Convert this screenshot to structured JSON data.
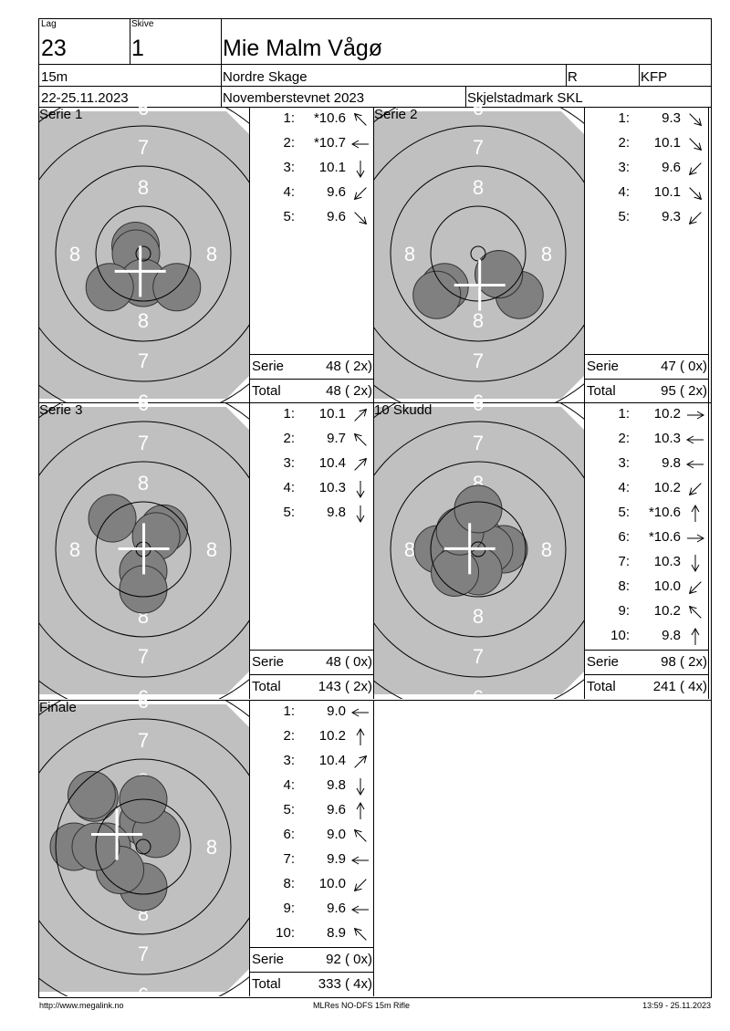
{
  "header": {
    "lag_label": "Lag",
    "lag": "23",
    "skive_label": "Skive",
    "skive": "1",
    "name": "Mie Malm Vågø",
    "distance": "15m",
    "club": "Nordre Skage",
    "class_code": "R",
    "class": "KFP",
    "date": "22-25.11.2023",
    "event": "Novemberstevnet 2023",
    "venue": "Skjelstadmark SKL"
  },
  "target": {
    "ring_labels": [
      "6",
      "7",
      "8"
    ],
    "colors": {
      "target": "#c0c0c0",
      "shot": "#808080",
      "cross": "#ffffff"
    }
  },
  "panels": [
    {
      "title": "Serie 1",
      "shots": [
        {
          "n": "1:",
          "value": "*10.6",
          "score": 10.6,
          "dir": "up-left"
        },
        {
          "n": "2:",
          "value": "*10.7",
          "score": 10.7,
          "dir": "left"
        },
        {
          "n": "3:",
          "value": "10.1",
          "score": 10.1,
          "dir": "down"
        },
        {
          "n": "4:",
          "value": "9.6",
          "score": 9.6,
          "dir": "down-left"
        },
        {
          "n": "5:",
          "value": "9.6",
          "score": 9.6,
          "dir": "down-right"
        }
      ],
      "serie_label": "Serie",
      "serie_value": "48 ( 2x)",
      "total_label": "Total",
      "total_value": "48 ( 2x)"
    },
    {
      "title": "Serie 2",
      "shots": [
        {
          "n": "1:",
          "value": "9.3",
          "score": 9.3,
          "dir": "down-right"
        },
        {
          "n": "2:",
          "value": "10.1",
          "score": 10.1,
          "dir": "down-right"
        },
        {
          "n": "3:",
          "value": "9.6",
          "score": 9.6,
          "dir": "down-left"
        },
        {
          "n": "4:",
          "value": "10.1",
          "score": 10.1,
          "dir": "down-right"
        },
        {
          "n": "5:",
          "value": "9.3",
          "score": 9.3,
          "dir": "down-left"
        }
      ],
      "serie_label": "Serie",
      "serie_value": "47 ( 0x)",
      "total_label": "Total",
      "total_value": "95 ( 2x)"
    },
    {
      "title": "Serie 3",
      "shots": [
        {
          "n": "1:",
          "value": "10.1",
          "score": 10.1,
          "dir": "up-right"
        },
        {
          "n": "2:",
          "value": "9.7",
          "score": 9.7,
          "dir": "up-left"
        },
        {
          "n": "3:",
          "value": "10.4",
          "score": 10.4,
          "dir": "up-right"
        },
        {
          "n": "4:",
          "value": "10.3",
          "score": 10.3,
          "dir": "down"
        },
        {
          "n": "5:",
          "value": "9.8",
          "score": 9.8,
          "dir": "down"
        }
      ],
      "serie_label": "Serie",
      "serie_value": "48 ( 0x)",
      "total_label": "Total",
      "total_value": "143 ( 2x)"
    },
    {
      "title": "10 Skudd",
      "shots": [
        {
          "n": "1:",
          "value": "10.2",
          "score": 10.2,
          "dir": "right"
        },
        {
          "n": "2:",
          "value": "10.3",
          "score": 10.3,
          "dir": "left"
        },
        {
          "n": "3:",
          "value": "9.8",
          "score": 9.8,
          "dir": "left"
        },
        {
          "n": "4:",
          "value": "10.2",
          "score": 10.2,
          "dir": "down-left"
        },
        {
          "n": "5:",
          "value": "*10.6",
          "score": 10.6,
          "dir": "up"
        },
        {
          "n": "6:",
          "value": "*10.6",
          "score": 10.6,
          "dir": "right"
        },
        {
          "n": "7:",
          "value": "10.3",
          "score": 10.3,
          "dir": "down"
        },
        {
          "n": "8:",
          "value": "10.0",
          "score": 10.0,
          "dir": "down-left"
        },
        {
          "n": "9:",
          "value": "10.2",
          "score": 10.2,
          "dir": "up-left"
        },
        {
          "n": "10:",
          "value": "9.8",
          "score": 9.8,
          "dir": "up"
        }
      ],
      "serie_label": "Serie",
      "serie_value": "98 ( 2x)",
      "total_label": "Total",
      "total_value": "241 ( 4x)"
    },
    {
      "title": "Finale",
      "shots": [
        {
          "n": "1:",
          "value": "9.0",
          "score": 9.0,
          "dir": "left"
        },
        {
          "n": "2:",
          "value": "10.2",
          "score": 10.2,
          "dir": "up"
        },
        {
          "n": "3:",
          "value": "10.4",
          "score": 10.4,
          "dir": "up-right"
        },
        {
          "n": "4:",
          "value": "9.8",
          "score": 9.8,
          "dir": "down"
        },
        {
          "n": "5:",
          "value": "9.6",
          "score": 9.6,
          "dir": "up"
        },
        {
          "n": "6:",
          "value": "9.0",
          "score": 9.0,
          "dir": "up-left"
        },
        {
          "n": "7:",
          "value": "9.9",
          "score": 9.9,
          "dir": "left"
        },
        {
          "n": "8:",
          "value": "10.0",
          "score": 10.0,
          "dir": "down-left"
        },
        {
          "n": "9:",
          "value": "9.6",
          "score": 9.6,
          "dir": "left"
        },
        {
          "n": "10:",
          "value": "8.9",
          "score": 8.9,
          "dir": "up-left"
        }
      ],
      "serie_label": "Serie",
      "serie_value": "92 ( 0x)",
      "total_label": "Total",
      "total_value": "333 ( 4x)"
    }
  ],
  "footer": {
    "url": "http://www.megalink.no",
    "program": "MLRes NO-DFS 15m Rifle",
    "timestamp": "13:59 - 25.11.2023"
  }
}
